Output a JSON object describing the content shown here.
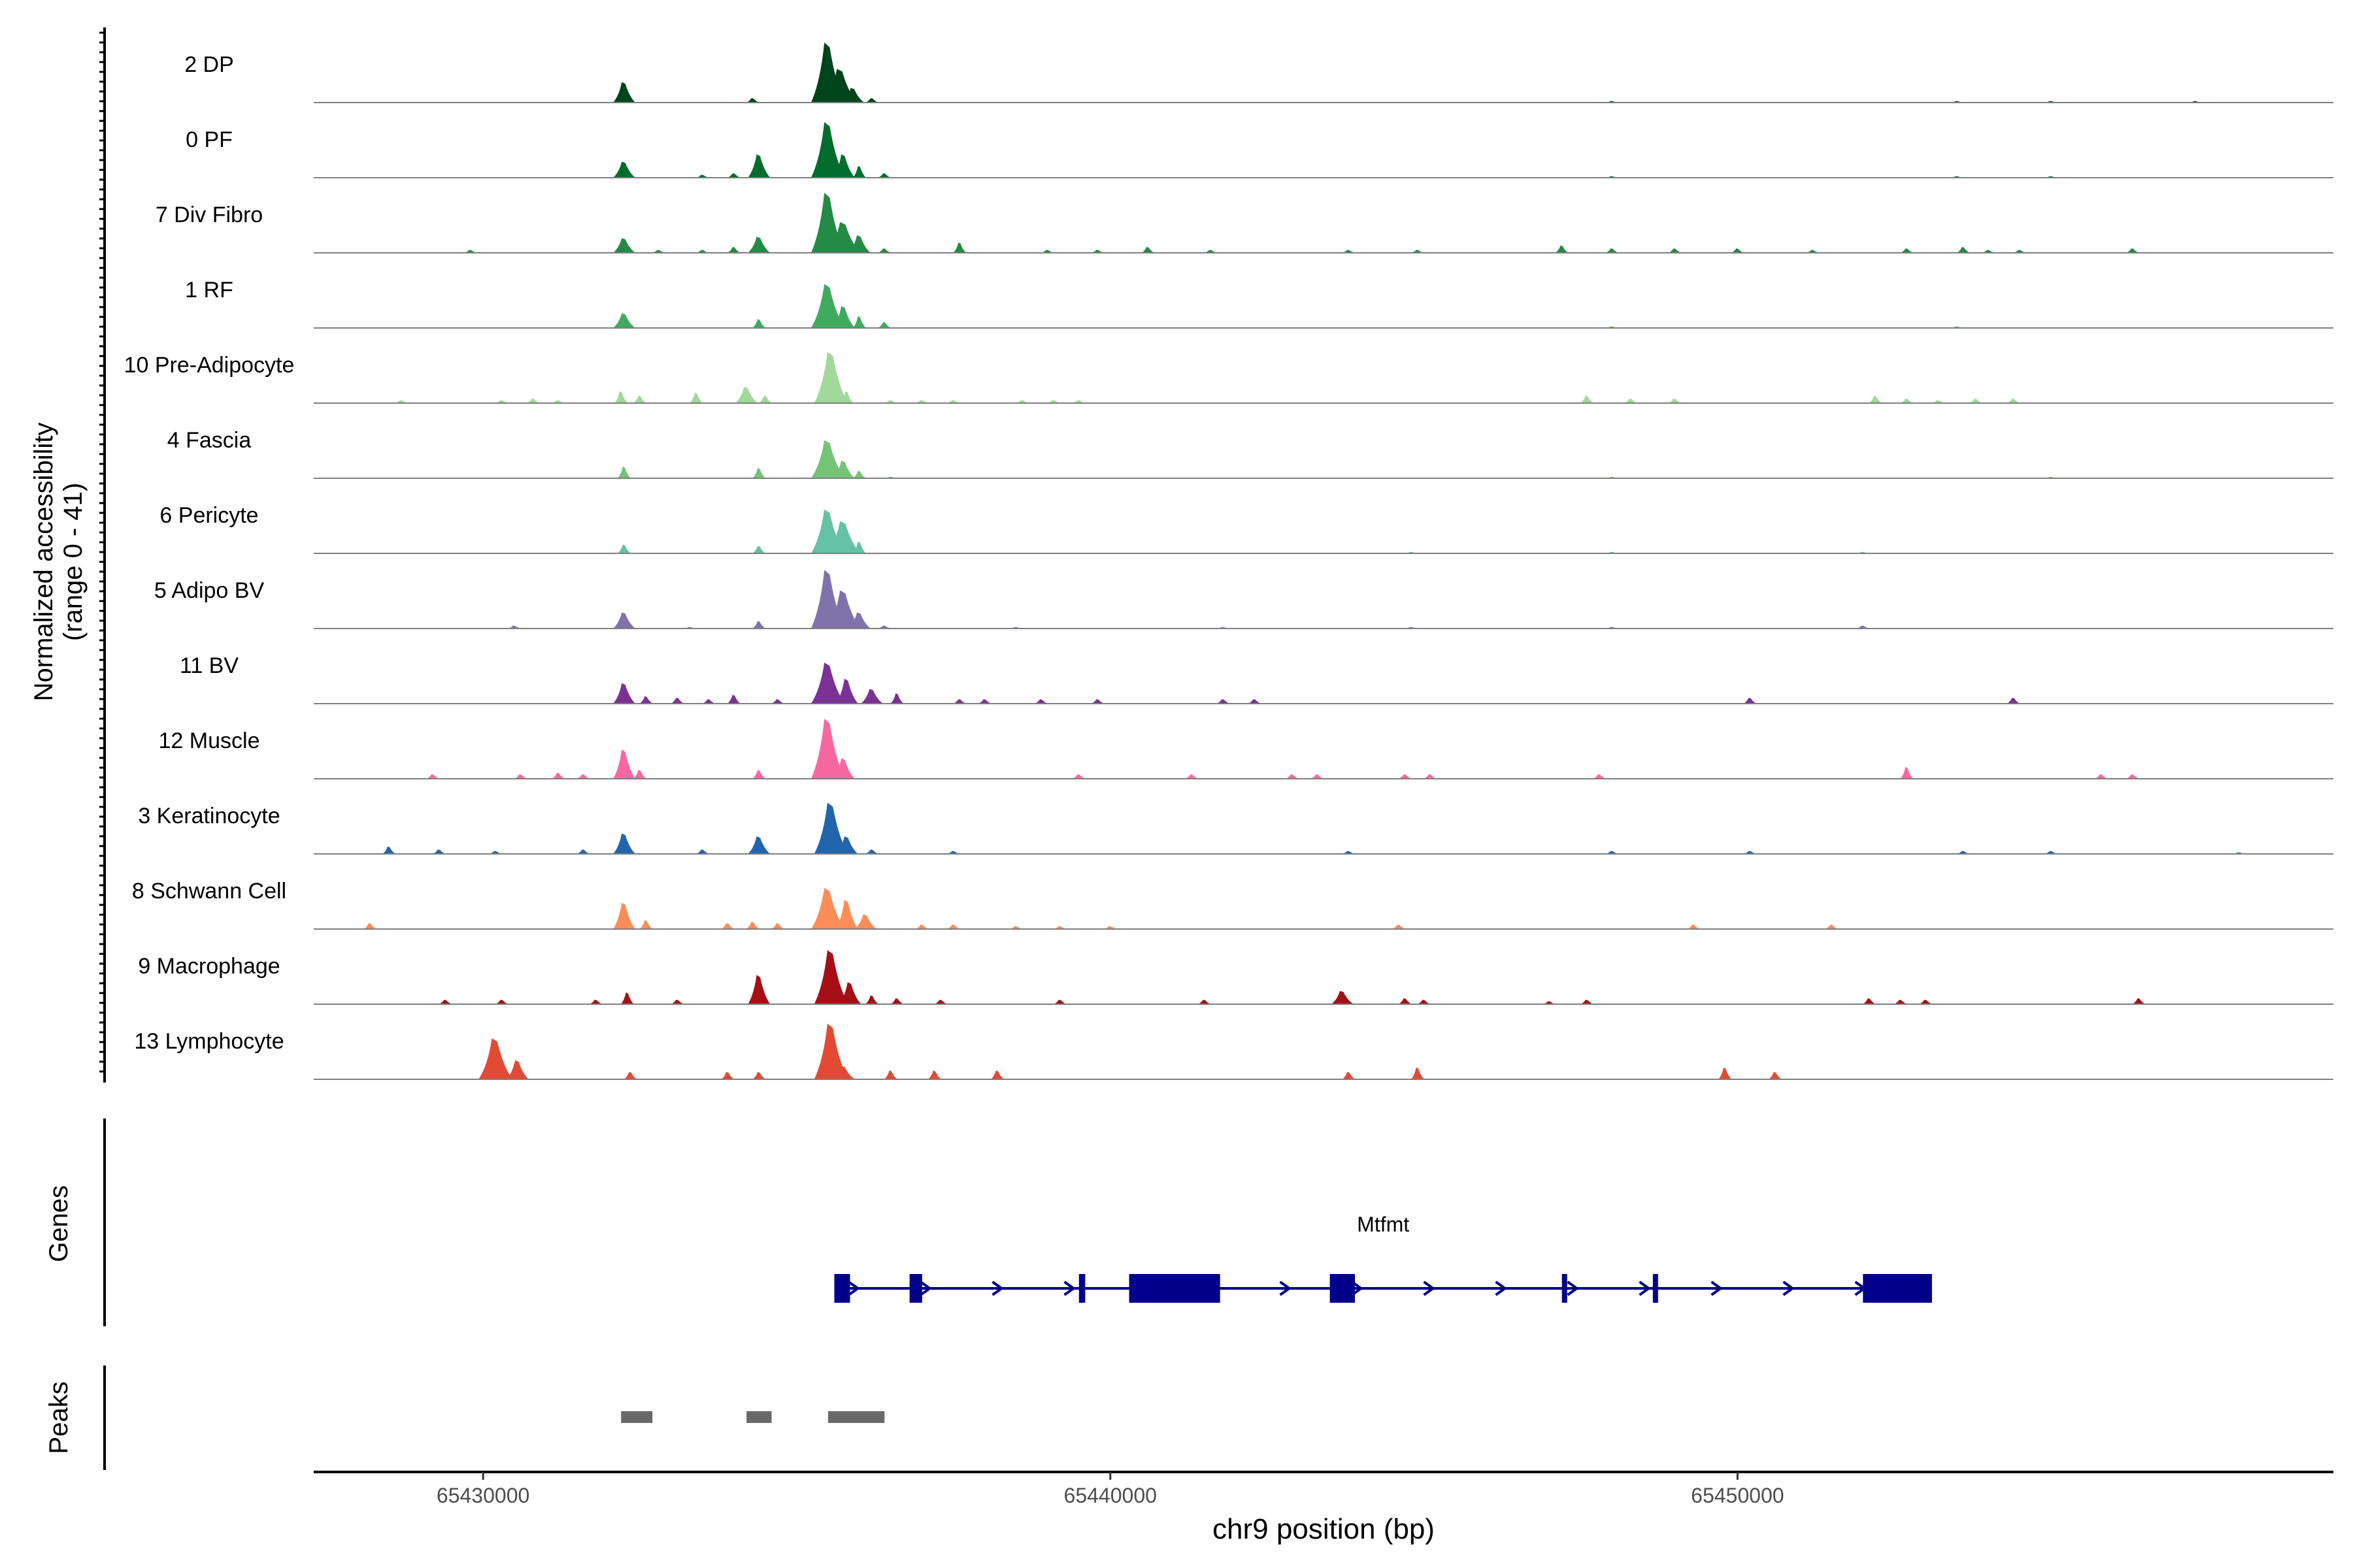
{
  "chart_data": {
    "type": "area",
    "chromosome": "chr9",
    "xlabel": "chr9 position (bp)",
    "ylabel_line1": "Normalized accessibility",
    "ylabel_line2": "(range 0 - 41)",
    "y_range": [
      0,
      41
    ],
    "xlim": [
      65427300,
      65459500
    ],
    "x_ticks": [
      65430000,
      65440000,
      65450000
    ],
    "x_tick_labels": [
      "65430000",
      "65440000",
      "65450000"
    ],
    "tracks": [
      {
        "name": "2 DP",
        "color": "#00441b",
        "peaks": [
          [
            65432250,
            14
          ],
          [
            65434300,
            3
          ],
          [
            65435500,
            41
          ],
          [
            65435700,
            23
          ],
          [
            65435900,
            10
          ],
          [
            65436200,
            3
          ],
          [
            65448000,
            1
          ],
          [
            65453500,
            1
          ],
          [
            65455000,
            1
          ],
          [
            65457300,
            1
          ]
        ]
      },
      {
        "name": "0 PF",
        "color": "#006d2c",
        "peaks": [
          [
            65432250,
            11
          ],
          [
            65433500,
            2
          ],
          [
            65434000,
            3
          ],
          [
            65434400,
            16
          ],
          [
            65435500,
            38
          ],
          [
            65435750,
            16
          ],
          [
            65436000,
            8
          ],
          [
            65436400,
            3
          ],
          [
            65448000,
            1
          ],
          [
            65453500,
            1
          ],
          [
            65455000,
            1
          ]
        ]
      },
      {
        "name": "7 Div Fibro",
        "color": "#238b45",
        "peaks": [
          [
            65429800,
            2
          ],
          [
            65432250,
            10
          ],
          [
            65432800,
            2
          ],
          [
            65433500,
            2
          ],
          [
            65434000,
            4
          ],
          [
            65434400,
            11
          ],
          [
            65435500,
            41
          ],
          [
            65435750,
            21
          ],
          [
            65436000,
            12
          ],
          [
            65436400,
            3
          ],
          [
            65437600,
            7
          ],
          [
            65439000,
            2
          ],
          [
            65439800,
            2
          ],
          [
            65440600,
            4
          ],
          [
            65441600,
            2
          ],
          [
            65443800,
            2
          ],
          [
            65444900,
            2
          ],
          [
            65447200,
            5
          ],
          [
            65448000,
            3
          ],
          [
            65449000,
            3
          ],
          [
            65450000,
            3
          ],
          [
            65451200,
            2
          ],
          [
            65452700,
            3
          ],
          [
            65453600,
            4
          ],
          [
            65454000,
            2
          ],
          [
            65454500,
            2
          ],
          [
            65456300,
            3
          ]
        ]
      },
      {
        "name": "1 RF",
        "color": "#41ab5d",
        "peaks": [
          [
            65432250,
            10
          ],
          [
            65434400,
            6
          ],
          [
            65435500,
            30
          ],
          [
            65435750,
            15
          ],
          [
            65436000,
            8
          ],
          [
            65436400,
            4
          ],
          [
            65448000,
            1
          ],
          [
            65453500,
            1
          ]
        ]
      },
      {
        "name": "10 Pre-Adipocyte",
        "color": "#a1d99b",
        "peaks": [
          [
            65428700,
            2
          ],
          [
            65430300,
            2
          ],
          [
            65430800,
            3
          ],
          [
            65431200,
            2
          ],
          [
            65432200,
            8
          ],
          [
            65432500,
            5
          ],
          [
            65433400,
            7
          ],
          [
            65434200,
            11
          ],
          [
            65434500,
            5
          ],
          [
            65435550,
            35
          ],
          [
            65435800,
            8
          ],
          [
            65436500,
            2
          ],
          [
            65437000,
            2
          ],
          [
            65437500,
            2
          ],
          [
            65438600,
            2
          ],
          [
            65439100,
            2
          ],
          [
            65439500,
            2
          ],
          [
            65447600,
            5
          ],
          [
            65448300,
            3
          ],
          [
            65449000,
            3
          ],
          [
            65452200,
            5
          ],
          [
            65452700,
            3
          ],
          [
            65453200,
            2
          ],
          [
            65453800,
            3
          ],
          [
            65454400,
            3
          ]
        ]
      },
      {
        "name": "4 Fascia",
        "color": "#74c476",
        "peaks": [
          [
            65432250,
            8
          ],
          [
            65434400,
            7
          ],
          [
            65435500,
            26
          ],
          [
            65435750,
            12
          ],
          [
            65436000,
            5
          ],
          [
            65436500,
            1
          ],
          [
            65448000,
            1
          ],
          [
            65455000,
            1
          ]
        ]
      },
      {
        "name": "6 Pericyte",
        "color": "#66c2a4",
        "peaks": [
          [
            65432250,
            6
          ],
          [
            65434400,
            5
          ],
          [
            65435500,
            30
          ],
          [
            65435750,
            22
          ],
          [
            65436000,
            8
          ],
          [
            65444800,
            1
          ],
          [
            65448000,
            1
          ],
          [
            65452000,
            1
          ]
        ]
      },
      {
        "name": "5 Adipo BV",
        "color": "#8073ac",
        "peaks": [
          [
            65430500,
            2
          ],
          [
            65432250,
            11
          ],
          [
            65433300,
            1
          ],
          [
            65434400,
            5
          ],
          [
            65435500,
            40
          ],
          [
            65435750,
            26
          ],
          [
            65436000,
            11
          ],
          [
            65436400,
            2
          ],
          [
            65438500,
            1
          ],
          [
            65441800,
            1
          ],
          [
            65444800,
            1
          ],
          [
            65448000,
            1
          ],
          [
            65452000,
            2
          ]
        ]
      },
      {
        "name": "11 BV",
        "color": "#7b3294",
        "peaks": [
          [
            65432250,
            14
          ],
          [
            65432600,
            5
          ],
          [
            65433100,
            4
          ],
          [
            65433600,
            3
          ],
          [
            65434000,
            6
          ],
          [
            65434700,
            3
          ],
          [
            65435500,
            28
          ],
          [
            65435800,
            17
          ],
          [
            65436200,
            10
          ],
          [
            65436600,
            7
          ],
          [
            65437600,
            3
          ],
          [
            65438000,
            3
          ],
          [
            65438900,
            3
          ],
          [
            65439800,
            3
          ],
          [
            65441800,
            3
          ],
          [
            65442300,
            3
          ],
          [
            65450200,
            4
          ],
          [
            65454400,
            4
          ]
        ]
      },
      {
        "name": "12 Muscle",
        "color": "#f768a1",
        "peaks": [
          [
            65429200,
            3
          ],
          [
            65430600,
            3
          ],
          [
            65431200,
            4
          ],
          [
            65431600,
            3
          ],
          [
            65432250,
            20
          ],
          [
            65432500,
            6
          ],
          [
            65434400,
            6
          ],
          [
            65435500,
            41
          ],
          [
            65435750,
            14
          ],
          [
            65439500,
            3
          ],
          [
            65441300,
            3
          ],
          [
            65442900,
            3
          ],
          [
            65443300,
            3
          ],
          [
            65444700,
            3
          ],
          [
            65445100,
            3
          ],
          [
            65447800,
            3
          ],
          [
            65452700,
            8
          ],
          [
            65455800,
            3
          ],
          [
            65456300,
            3
          ]
        ]
      },
      {
        "name": "3 Keratinocyte",
        "color": "#2166ac",
        "peaks": [
          [
            65428500,
            5
          ],
          [
            65429300,
            3
          ],
          [
            65430200,
            2
          ],
          [
            65431600,
            3
          ],
          [
            65432250,
            14
          ],
          [
            65433500,
            3
          ],
          [
            65434400,
            12
          ],
          [
            65435550,
            35
          ],
          [
            65435800,
            12
          ],
          [
            65436200,
            3
          ],
          [
            65437500,
            2
          ],
          [
            65443800,
            2
          ],
          [
            65448000,
            2
          ],
          [
            65450200,
            2
          ],
          [
            65453600,
            2
          ],
          [
            65455000,
            2
          ],
          [
            65458000,
            1
          ]
        ]
      },
      {
        "name": "8 Schwann Cell",
        "color": "#fc8d59",
        "peaks": [
          [
            65428200,
            4
          ],
          [
            65432250,
            18
          ],
          [
            65432600,
            6
          ],
          [
            65433900,
            4
          ],
          [
            65434300,
            5
          ],
          [
            65434700,
            4
          ],
          [
            65435500,
            28
          ],
          [
            65435800,
            20
          ],
          [
            65436100,
            10
          ],
          [
            65437000,
            3
          ],
          [
            65437500,
            3
          ],
          [
            65438500,
            2
          ],
          [
            65439200,
            2
          ],
          [
            65440000,
            2
          ],
          [
            65444600,
            3
          ],
          [
            65449300,
            3
          ],
          [
            65451500,
            3
          ]
        ]
      },
      {
        "name": "9 Macrophage",
        "color": "#a50f15",
        "peaks": [
          [
            65429400,
            3
          ],
          [
            65430300,
            3
          ],
          [
            65431800,
            3
          ],
          [
            65432300,
            8
          ],
          [
            65433100,
            3
          ],
          [
            65434400,
            20
          ],
          [
            65435550,
            37
          ],
          [
            65435850,
            15
          ],
          [
            65436200,
            6
          ],
          [
            65436600,
            4
          ],
          [
            65437300,
            3
          ],
          [
            65439200,
            3
          ],
          [
            65441500,
            3
          ],
          [
            65443700,
            9
          ],
          [
            65444700,
            4
          ],
          [
            65445000,
            3
          ],
          [
            65447000,
            2
          ],
          [
            65447600,
            3
          ],
          [
            65452100,
            4
          ],
          [
            65452600,
            3
          ],
          [
            65453000,
            3
          ],
          [
            65456400,
            4
          ]
        ]
      },
      {
        "name": "13 Lymphocyte",
        "color": "#e34a33",
        "peaks": [
          [
            65430200,
            28
          ],
          [
            65430550,
            13
          ],
          [
            65432350,
            5
          ],
          [
            65433900,
            5
          ],
          [
            65434400,
            5
          ],
          [
            65435550,
            38
          ],
          [
            65435750,
            9
          ],
          [
            65436500,
            6
          ],
          [
            65437200,
            6
          ],
          [
            65438200,
            6
          ],
          [
            65443800,
            5
          ],
          [
            65444900,
            8
          ],
          [
            65449800,
            8
          ],
          [
            65450600,
            5
          ]
        ]
      }
    ],
    "genes": [
      {
        "name": "Mtfmt",
        "strand": "+",
        "start": 65435600,
        "end": 65453100,
        "color": "#00008b",
        "exons": [
          [
            65435600,
            65435850
          ],
          [
            65436800,
            65437000
          ],
          [
            65439500,
            65439600
          ],
          [
            65440300,
            65441750
          ],
          [
            65443500,
            65443900
          ],
          [
            65447200,
            65447250
          ],
          [
            65448650,
            65448700
          ],
          [
            65452000,
            65453100
          ]
        ]
      }
    ],
    "peaks_track": {
      "color": "#696969",
      "regions": [
        [
          65432200,
          65432700
        ],
        [
          65434200,
          65434600
        ],
        [
          65435500,
          65436400
        ]
      ]
    },
    "panel_labels": {
      "genes": "Genes",
      "peaks": "Peaks"
    }
  }
}
